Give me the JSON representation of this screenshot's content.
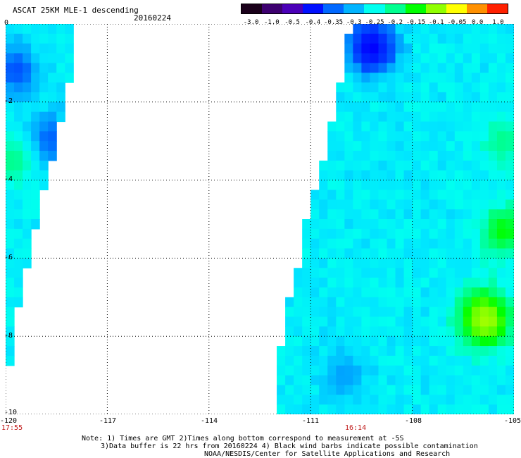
{
  "header": {
    "title": "ASCAT 25KM MLE-1 descending",
    "date": "20160224"
  },
  "colorbar": {
    "labels": [
      "-3.0",
      "-1.0",
      "-0.5",
      "-0.4",
      "-0.35",
      "-0.3",
      "-0.25",
      "-0.2",
      "-0.15",
      "-0.1",
      "-0.05",
      "0.0",
      "1.0"
    ],
    "colors": [
      "#1a001a",
      "#3d0070",
      "#4b00b8",
      "#0010ff",
      "#0068ff",
      "#00b4ff",
      "#00fff0",
      "#00ff90",
      "#00ff00",
      "#90ff00",
      "#ffff00",
      "#ff9000",
      "#ff2000"
    ]
  },
  "axes": {
    "x_ticks": [
      "-120",
      "-117",
      "-114",
      "-111",
      "-108",
      "-105"
    ],
    "y_ticks": [
      "0",
      "-2",
      "-4",
      "-6",
      "-8",
      "-10"
    ],
    "x_range": [
      -120,
      -105
    ],
    "y_range": [
      0,
      -10
    ],
    "grid": "dotted"
  },
  "swath_times": [
    "17:55",
    "16:14"
  ],
  "notes": [
    "Note: 1) Times are GMT 2)Times along bottom correspond to measurement at -5S",
    "3)Data buffer is 22 hrs from 20160224 4) Black wind barbs indicate possible contamination",
    "NOAA/NESDIS/Center for Satellite Applications and Research"
  ],
  "map_data": {
    "field": "MLE",
    "swaths": [
      {
        "time": "17:55",
        "left_lon": -120,
        "right_edge": [
          [
            0,
            -117.9
          ],
          [
            -1,
            -117.9
          ],
          [
            -2,
            -118.3
          ],
          [
            -3,
            -118.5
          ],
          [
            -4,
            -118.8
          ],
          [
            -5,
            -119.1
          ],
          [
            -6,
            -119.3
          ],
          [
            -7,
            -119.6
          ],
          [
            -8,
            -119.8
          ],
          [
            -9,
            -119.9
          ],
          [
            -10,
            -120.0
          ]
        ],
        "hotspots": [
          {
            "lon": -119.7,
            "lat": -1.2,
            "value": -0.4
          },
          {
            "lon": -118.8,
            "lat": -3.0,
            "value": -0.4
          },
          {
            "lon": -119.8,
            "lat": -3.5,
            "value": -0.2
          }
        ]
      },
      {
        "time": "16:14",
        "left_edge": [
          [
            0,
            -109.8
          ],
          [
            -1,
            -110.0
          ],
          [
            -2,
            -110.2
          ],
          [
            -3,
            -110.5
          ],
          [
            -4,
            -110.8
          ],
          [
            -5,
            -111.1
          ],
          [
            -6,
            -111.3
          ],
          [
            -7,
            -111.6
          ],
          [
            -8,
            -111.8
          ],
          [
            -9,
            -112.0
          ],
          [
            -10,
            -112.0
          ]
        ],
        "right_lon": -105,
        "hotspots": [
          {
            "lon": -109.2,
            "lat": -0.6,
            "value": -0.5
          },
          {
            "lon": -105.3,
            "lat": -3.0,
            "value": -0.2
          },
          {
            "lon": -105.3,
            "lat": -5.3,
            "value": -0.15
          },
          {
            "lon": -106.0,
            "lat": -7.5,
            "value": -0.15
          },
          {
            "lon": -105.8,
            "lat": -7.6,
            "value": -0.1
          },
          {
            "lon": -110.0,
            "lat": -9.0,
            "value": -0.35
          }
        ]
      }
    ]
  }
}
